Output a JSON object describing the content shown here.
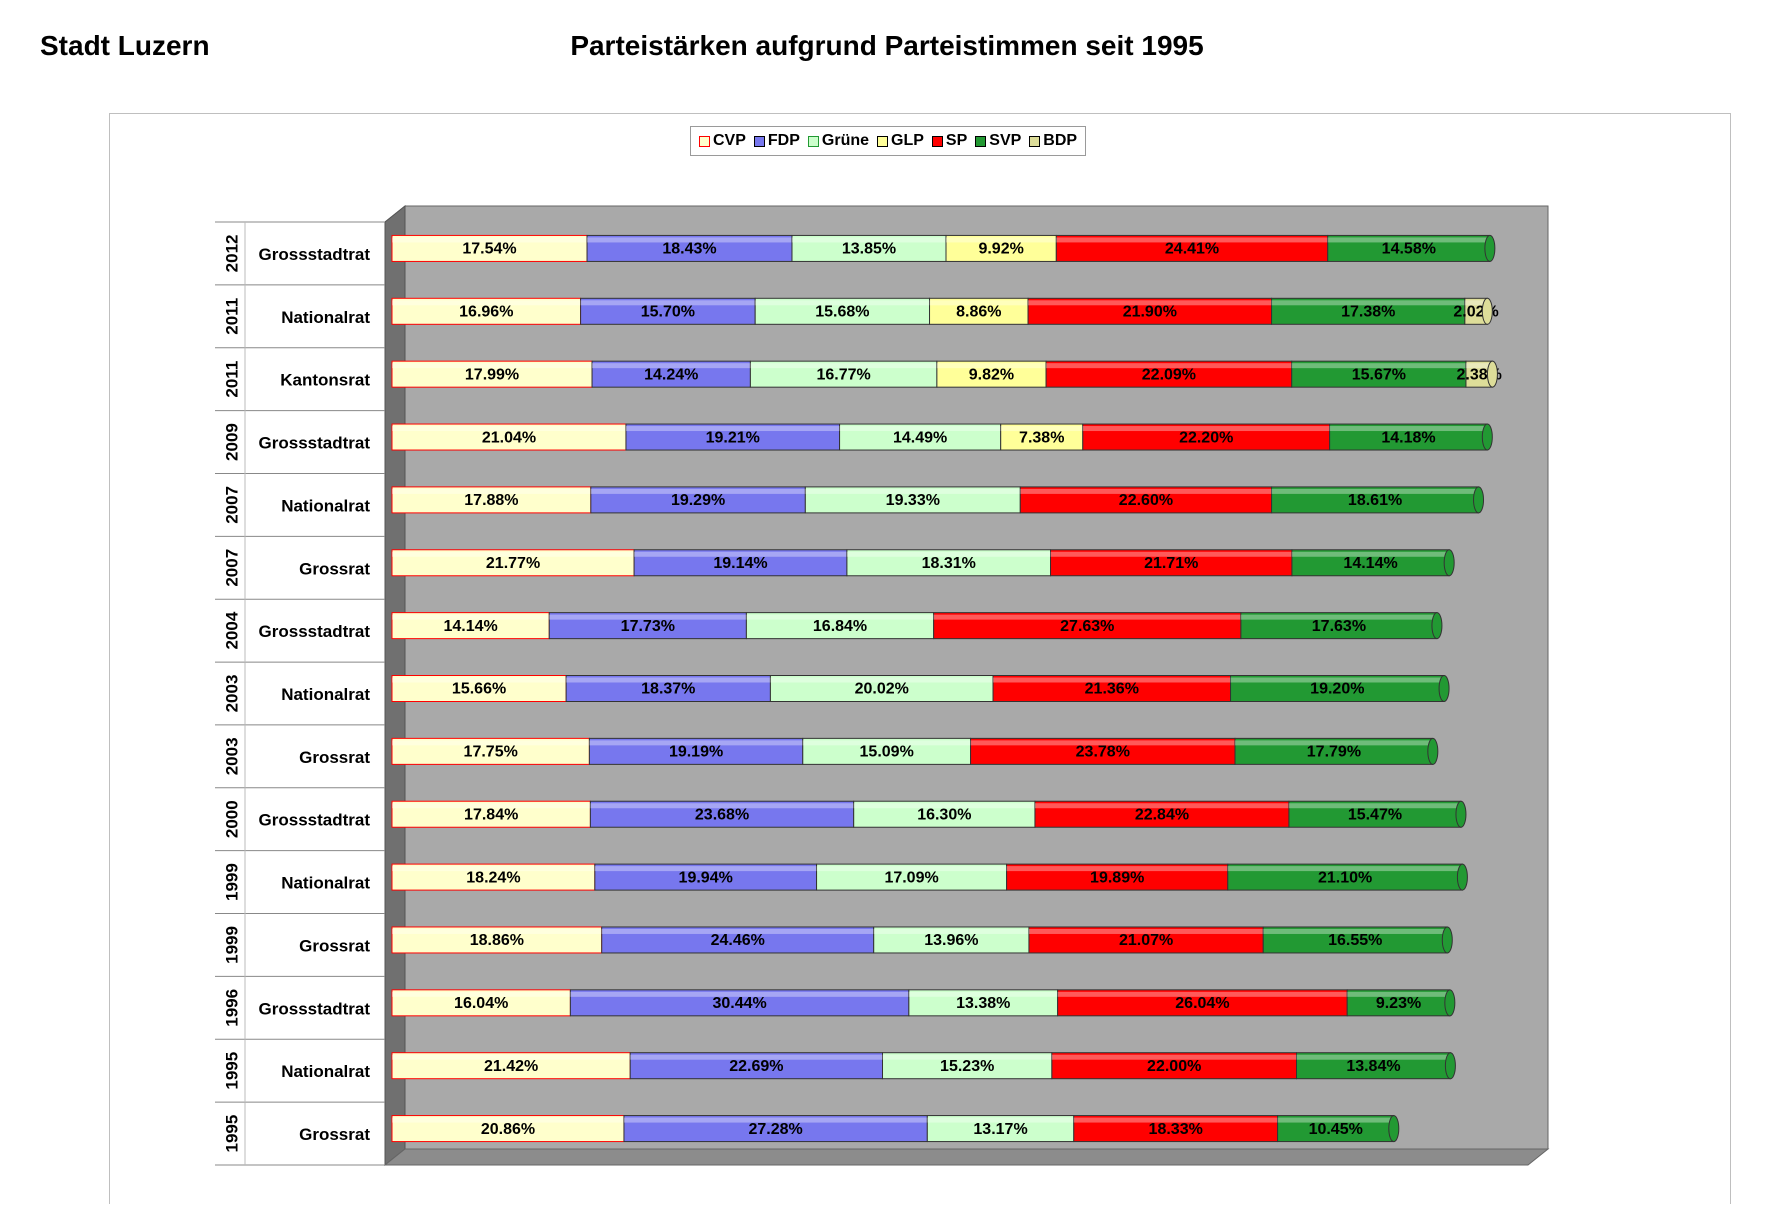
{
  "header": {
    "left": "Stadt Luzern",
    "title": "Parteistärken aufgrund Parteistimmen seit 1995"
  },
  "colors": {
    "CVP": "#ffffcc",
    "FDP": "#7777ee",
    "Grüne": "#ccffcc",
    "GLP": "#ffff99",
    "SP": "#ff0000",
    "SVP": "#229933",
    "BDP": "#dddd99",
    "CVP_border": "#ff0000",
    "plot_bg": "#b0b0b0"
  },
  "chart_data": {
    "type": "bar",
    "orientation": "horizontal",
    "stacked": true,
    "legend_position": "top",
    "categories": [
      {
        "year": "2012",
        "election": "Grossstadtrat"
      },
      {
        "year": "2011",
        "election": "Nationalrat"
      },
      {
        "year": "2011",
        "election": "Kantonsrat"
      },
      {
        "year": "2009",
        "election": "Grossstadtrat"
      },
      {
        "year": "2007",
        "election": "Nationalrat"
      },
      {
        "year": "2007",
        "election": "Grossrat"
      },
      {
        "year": "2004",
        "election": "Grossstadtrat"
      },
      {
        "year": "2003",
        "election": "Nationalrat"
      },
      {
        "year": "2003",
        "election": "Grossrat"
      },
      {
        "year": "2000",
        "election": "Grossstadtrat"
      },
      {
        "year": "1999",
        "election": "Nationalrat"
      },
      {
        "year": "1999",
        "election": "Grossrat"
      },
      {
        "year": "1996",
        "election": "Grossstadtrat"
      },
      {
        "year": "1995",
        "election": "Nationalrat"
      },
      {
        "year": "1995",
        "election": "Grossrat"
      }
    ],
    "series": [
      {
        "name": "CVP",
        "values": [
          17.54,
          16.96,
          17.99,
          21.04,
          17.88,
          21.77,
          14.14,
          15.66,
          17.75,
          17.84,
          18.24,
          18.86,
          16.04,
          21.42,
          20.86
        ]
      },
      {
        "name": "FDP",
        "values": [
          18.43,
          15.7,
          14.24,
          19.21,
          19.29,
          19.14,
          17.73,
          18.37,
          19.19,
          23.68,
          19.94,
          24.46,
          30.44,
          22.69,
          27.28
        ]
      },
      {
        "name": "Grüne",
        "values": [
          13.85,
          15.68,
          16.77,
          14.49,
          19.33,
          18.31,
          16.84,
          20.02,
          15.09,
          16.3,
          17.09,
          13.96,
          13.38,
          15.23,
          13.17
        ]
      },
      {
        "name": "GLP",
        "values": [
          9.92,
          8.86,
          9.82,
          7.38,
          null,
          null,
          null,
          null,
          null,
          null,
          null,
          null,
          null,
          null,
          null
        ]
      },
      {
        "name": "SP",
        "values": [
          24.41,
          21.9,
          22.09,
          22.2,
          22.6,
          21.71,
          27.63,
          21.36,
          23.78,
          22.84,
          19.89,
          21.07,
          26.04,
          22.0,
          18.33
        ]
      },
      {
        "name": "SVP",
        "values": [
          14.58,
          17.38,
          15.67,
          14.18,
          18.61,
          14.14,
          17.63,
          19.2,
          17.79,
          15.47,
          21.1,
          16.55,
          9.23,
          13.84,
          10.45
        ]
      },
      {
        "name": "BDP",
        "values": [
          null,
          2.02,
          2.38,
          null,
          null,
          null,
          null,
          null,
          null,
          null,
          null,
          null,
          null,
          null,
          null
        ]
      }
    ],
    "value_labels": [
      [
        "17.54%",
        "18.43%",
        "13.85%",
        "9.92%",
        "24.41%",
        "14.58%",
        ""
      ],
      [
        "16.96%",
        "15.70%",
        "15.68%",
        "8.86%",
        "21.90%",
        "17.38%",
        "2.02%"
      ],
      [
        "17.99%",
        "14.24%",
        "16.77%",
        "9.82%",
        "22.09%",
        "15.67%",
        "2.38%"
      ],
      [
        "21.04%",
        "19.21%",
        "14.49%",
        "7.38%",
        "22.20%",
        "14.18%",
        ""
      ],
      [
        "17.88%",
        "19.29%",
        "19.33%",
        "",
        "22.60%",
        "18.61%",
        ""
      ],
      [
        "21.77%",
        "19.14%",
        "18.31%",
        "",
        "21.71%",
        "14.14%",
        ""
      ],
      [
        "14.14%",
        "17.73%",
        "16.84%",
        "",
        "27.63%",
        "17.63%",
        ""
      ],
      [
        "15.66%",
        "18.37%",
        "20.02%",
        "",
        "21.36%",
        "19.20%",
        ""
      ],
      [
        "17.75%",
        "19.19%",
        "15.09%",
        "",
        "23.78%",
        "17.79%",
        ""
      ],
      [
        "17.84%",
        "23.68%",
        "16.30%",
        "",
        "22.84%",
        "15.47%",
        ""
      ],
      [
        "18.24%",
        "19.94%",
        "17.09%",
        "",
        "19.89%",
        "21.10%",
        ""
      ],
      [
        "18.86%",
        "24.46%",
        "13.96%",
        "",
        "21.07%",
        "16.55%",
        ""
      ],
      [
        "16.04%",
        "30.44%",
        "13.38%",
        "",
        "26.04%",
        "9.23%",
        ""
      ],
      [
        "21.42%",
        "22.69%",
        "15.23%",
        "",
        "22.00%",
        "13.84%",
        ""
      ],
      [
        "20.86%",
        "27.28%",
        "13.17%",
        "",
        "18.33%",
        "10.45%",
        ""
      ]
    ],
    "grid": false
  }
}
